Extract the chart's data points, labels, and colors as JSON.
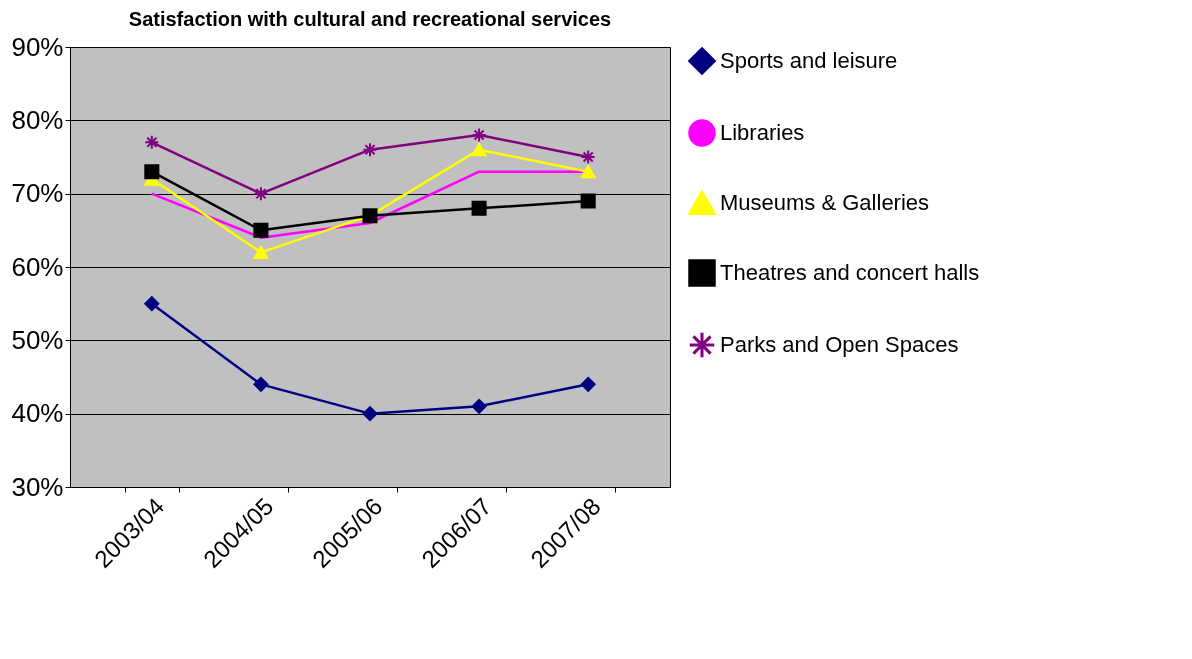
{
  "chart_data": {
    "type": "line",
    "title": "Satisfaction with cultural and recreational services",
    "categories": [
      "2003/04",
      "2004/05",
      "2005/06",
      "2006/07",
      "2007/08"
    ],
    "series": [
      {
        "name": "Sports and leisure",
        "color": "#000080",
        "marker": "diamond",
        "values": [
          55,
          44,
          40,
          41,
          44
        ]
      },
      {
        "name": "Libraries",
        "color": "#ff00ff",
        "marker": "none",
        "values": [
          70,
          64,
          66,
          73,
          73
        ]
      },
      {
        "name": "Museums & Galleries",
        "color": "#ffff00",
        "marker": "triangle",
        "values": [
          72,
          62,
          67,
          76,
          73
        ]
      },
      {
        "name": "Theatres and concert halls",
        "color": "#000000",
        "marker": "square",
        "values": [
          73,
          65,
          67,
          68,
          69
        ]
      },
      {
        "name": "Parks and Open Spaces",
        "color": "#800080",
        "marker": "cross",
        "values": [
          77,
          70,
          76,
          78,
          75
        ]
      }
    ],
    "ylim": [
      30,
      90
    ],
    "yticks": [
      {
        "value": 30,
        "label": "30%"
      },
      {
        "value": 40,
        "label": "40%"
      },
      {
        "value": 50,
        "label": "50%"
      },
      {
        "value": 60,
        "label": "60%"
      },
      {
        "value": 70,
        "label": "70%"
      },
      {
        "value": 80,
        "label": "80%"
      },
      {
        "value": 90,
        "label": "90%"
      }
    ],
    "grid": "y",
    "legend": "right"
  }
}
